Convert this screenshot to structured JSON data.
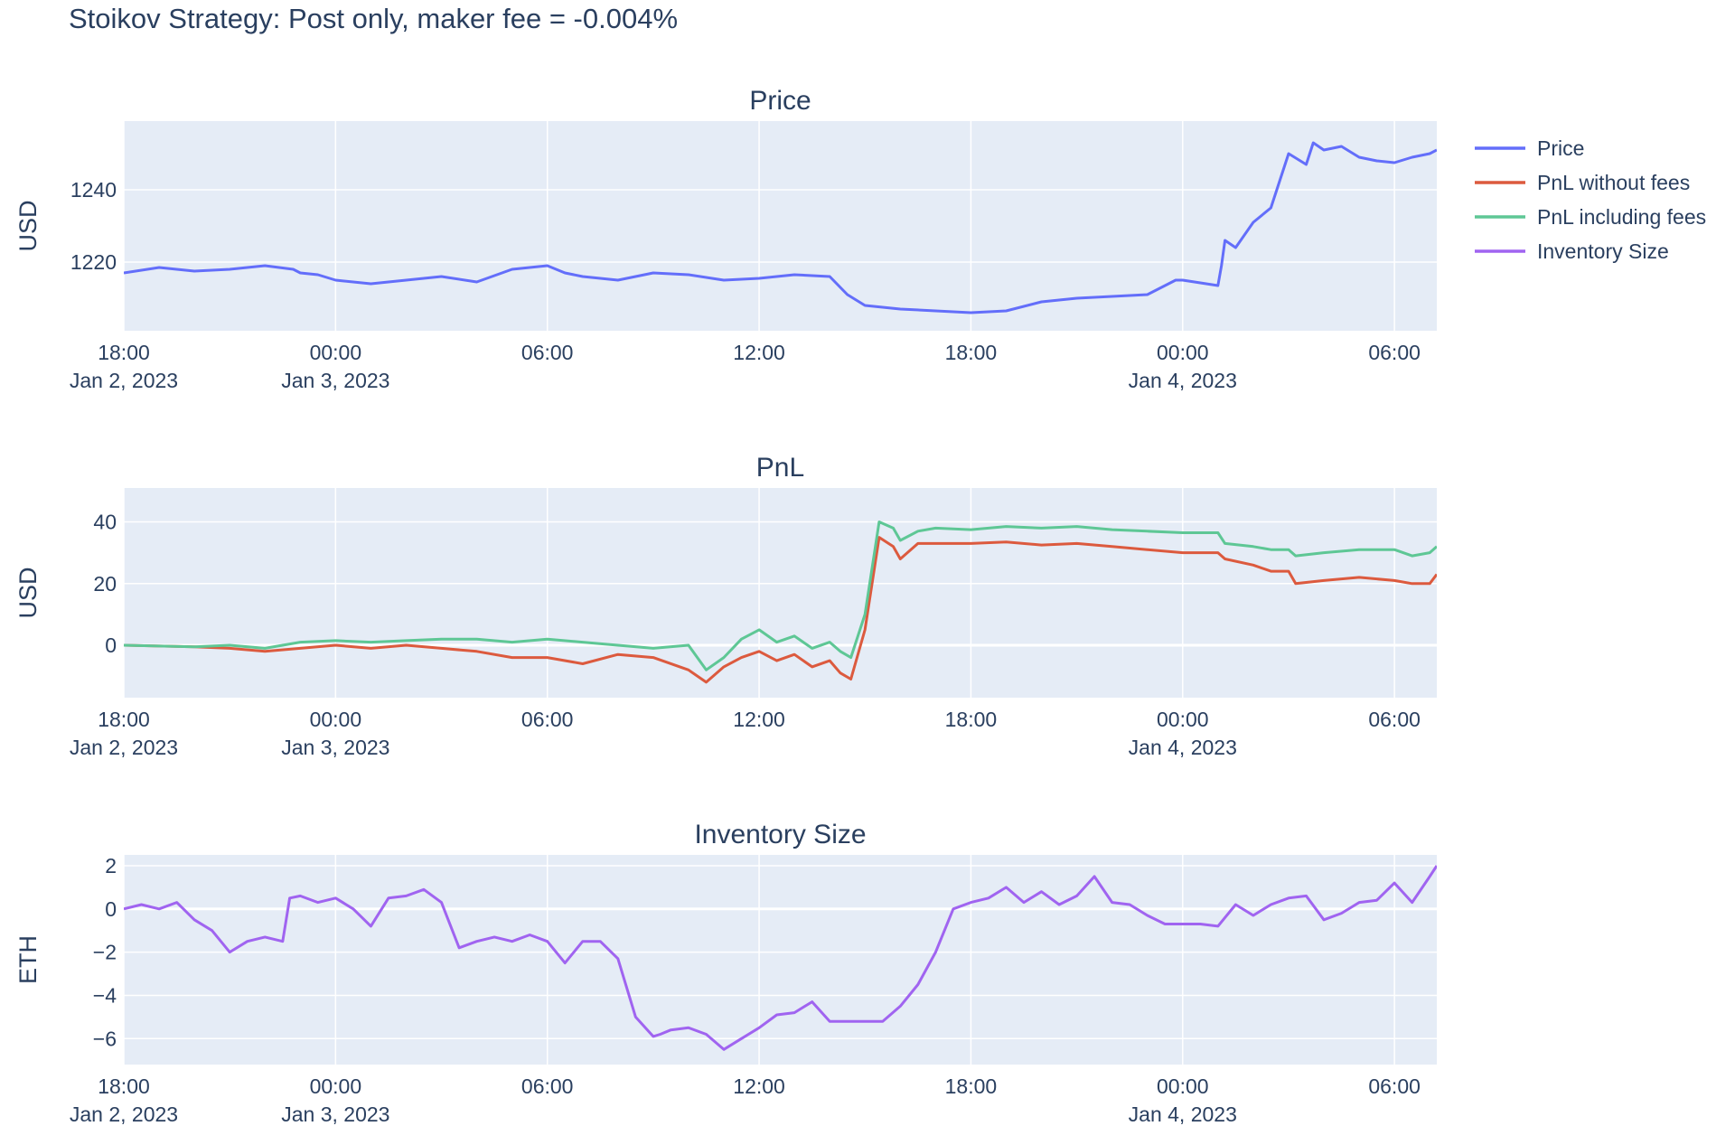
{
  "title": "Stoikov Strategy: Post only, maker fee = -0.004%",
  "colors": {
    "price": "#636efa",
    "pnl_no_fees": "#dc5a3e",
    "pnl_fees": "#5ec795",
    "inventory": "#a064f0",
    "plot_bg": "#e5ecf6",
    "grid": "#ffffff",
    "text": "#2a3f5f"
  },
  "legend": {
    "placement": "right",
    "items": [
      {
        "label": "Price",
        "color": "#636efa"
      },
      {
        "label": "PnL without fees",
        "color": "#dc5a3e"
      },
      {
        "label": "PnL including fees",
        "color": "#5ec795"
      },
      {
        "label": "Inventory Size",
        "color": "#a064f0"
      }
    ]
  },
  "x_axis": {
    "type": "time",
    "range_hours": [
      0,
      37.2
    ],
    "ticks": [
      {
        "t": 0,
        "line1": "18:00",
        "line2": "Jan 2, 2023"
      },
      {
        "t": 6,
        "line1": "00:00",
        "line2": "Jan 3, 2023"
      },
      {
        "t": 12,
        "line1": "06:00",
        "line2": ""
      },
      {
        "t": 18,
        "line1": "12:00",
        "line2": ""
      },
      {
        "t": 24,
        "line1": "18:00",
        "line2": ""
      },
      {
        "t": 30,
        "line1": "00:00",
        "line2": "Jan 4, 2023"
      },
      {
        "t": 36,
        "line1": "06:00",
        "line2": ""
      }
    ]
  },
  "chart_data": [
    {
      "type": "line",
      "title": "Price",
      "ylabel": "USD",
      "ylim": [
        1201,
        1259
      ],
      "yticks": [
        1220,
        1240
      ],
      "grid": true,
      "series": [
        {
          "name": "Price",
          "color_key": "price",
          "t": [
            0,
            1,
            2,
            3,
            4,
            4.8,
            5,
            5.5,
            6,
            7,
            8,
            9,
            10,
            11,
            12,
            12.5,
            13,
            14,
            15,
            16,
            17,
            18,
            19,
            20,
            20.5,
            21,
            22,
            23,
            24,
            25,
            26,
            27,
            28,
            29,
            29.8,
            30,
            31,
            31.1,
            31.2,
            31.5,
            32,
            32.5,
            33,
            33.5,
            33.7,
            34,
            34.5,
            35,
            35.5,
            36,
            36.5,
            37,
            37.2
          ],
          "y": [
            1217,
            1218.5,
            1217.5,
            1218,
            1219,
            1218,
            1217,
            1216.5,
            1215,
            1214,
            1215,
            1216,
            1214.5,
            1218,
            1219,
            1217,
            1216,
            1215,
            1217,
            1216.5,
            1215,
            1215.5,
            1216.5,
            1216,
            1211,
            1208,
            1207,
            1206.5,
            1206,
            1206.5,
            1209,
            1210,
            1210.5,
            1211,
            1215,
            1215,
            1213.5,
            1219,
            1226,
            1224,
            1231,
            1235,
            1250,
            1247,
            1253,
            1251,
            1252,
            1249,
            1248,
            1247.5,
            1249,
            1250,
            1251
          ]
        }
      ]
    },
    {
      "type": "line",
      "title": "PnL",
      "ylabel": "USD",
      "ylim": [
        -17,
        51
      ],
      "yticks": [
        0,
        20,
        40
      ],
      "grid": true,
      "series": [
        {
          "name": "PnL without fees",
          "color_key": "pnl_no_fees",
          "t": [
            0,
            2,
            3,
            4,
            5,
            6,
            7,
            8,
            9,
            10,
            11,
            12,
            13,
            14,
            15,
            16,
            16.5,
            17,
            17.5,
            18,
            18.5,
            19,
            19.5,
            20,
            20.3,
            20.6,
            21,
            21.4,
            21.8,
            22,
            22.5,
            23,
            24,
            25,
            26,
            27,
            28,
            29,
            30,
            31,
            31.2,
            32,
            32.5,
            33,
            33.2,
            34,
            35,
            36,
            36.5,
            37,
            37.2
          ],
          "y": [
            0,
            -0.5,
            -1,
            -2,
            -1,
            0,
            -1,
            0,
            -1,
            -2,
            -4,
            -4,
            -6,
            -3,
            -4,
            -8,
            -12,
            -7,
            -4,
            -2,
            -5,
            -3,
            -7,
            -5,
            -9,
            -11,
            5,
            35,
            32,
            28,
            33,
            33,
            33,
            33.5,
            32.5,
            33,
            32,
            31,
            30,
            30,
            28,
            26,
            24,
            24,
            20,
            21,
            22,
            21,
            20,
            20,
            23
          ]
        },
        {
          "name": "PnL including fees",
          "color_key": "pnl_fees",
          "t": [
            0,
            2,
            3,
            4,
            5,
            6,
            7,
            8,
            9,
            10,
            11,
            12,
            13,
            14,
            15,
            16,
            16.5,
            17,
            17.5,
            18,
            18.5,
            19,
            19.5,
            20,
            20.3,
            20.6,
            21,
            21.4,
            21.8,
            22,
            22.5,
            23,
            24,
            25,
            26,
            27,
            28,
            29,
            30,
            31,
            31.2,
            32,
            32.5,
            33,
            33.2,
            34,
            35,
            36,
            36.5,
            37,
            37.2
          ],
          "y": [
            0,
            -0.5,
            0,
            -1,
            1,
            1.5,
            1,
            1.5,
            2,
            2,
            1,
            2,
            1,
            0,
            -1,
            0,
            -8,
            -4,
            2,
            5,
            1,
            3,
            -1,
            1,
            -2,
            -4,
            10,
            40,
            38,
            34,
            37,
            38,
            37.5,
            38.5,
            38,
            38.5,
            37.5,
            37,
            36.5,
            36.5,
            33,
            32,
            31,
            31,
            29,
            30,
            31,
            31,
            29,
            30,
            32
          ]
        }
      ]
    },
    {
      "type": "line",
      "title": "Inventory Size",
      "ylabel": "ETH",
      "ylim": [
        -7.2,
        2.5
      ],
      "yticks": [
        -6,
        -4,
        -2,
        0,
        2
      ],
      "grid": true,
      "series": [
        {
          "name": "Inventory Size",
          "color_key": "inventory",
          "t": [
            0,
            0.5,
            1,
            1.5,
            2,
            2.5,
            3,
            3.5,
            4,
            4.5,
            4.7,
            5,
            5.5,
            6,
            6.5,
            7,
            7.5,
            8,
            8.5,
            9,
            9.5,
            10,
            10.5,
            11,
            11.5,
            12,
            12.5,
            13,
            13.5,
            14,
            14.5,
            15,
            15.2,
            15.5,
            16,
            16.5,
            17,
            17.5,
            18,
            18.5,
            19,
            19.5,
            20,
            20.5,
            21,
            21.5,
            22,
            22.5,
            23,
            23.5,
            24,
            24.5,
            25,
            25.5,
            26,
            26.5,
            27,
            27.5,
            28,
            28.5,
            29,
            29.5,
            30,
            30.5,
            31,
            31.5,
            32,
            32.5,
            33,
            33.5,
            34,
            34.5,
            35,
            35.5,
            36,
            36.5,
            37,
            37.2
          ],
          "y": [
            0,
            0.2,
            0,
            0.3,
            -0.5,
            -1,
            -2,
            -1.5,
            -1.3,
            -1.5,
            0.5,
            0.6,
            0.3,
            0.5,
            0,
            -0.8,
            0.5,
            0.6,
            0.9,
            0.3,
            -1.8,
            -1.5,
            -1.3,
            -1.5,
            -1.2,
            -1.5,
            -2.5,
            -1.5,
            -1.5,
            -2.3,
            -5,
            -5.9,
            -5.8,
            -5.6,
            -5.5,
            -5.8,
            -6.5,
            -6,
            -5.5,
            -4.9,
            -4.8,
            -4.3,
            -5.2,
            -5.2,
            -5.2,
            -5.2,
            -4.5,
            -3.5,
            -2,
            0,
            0.3,
            0.5,
            1,
            0.3,
            0.8,
            0.2,
            0.6,
            1.5,
            0.3,
            0.2,
            -0.3,
            -0.7,
            -0.7,
            -0.7,
            -0.8,
            0.2,
            -0.3,
            0.2,
            0.5,
            0.6,
            -0.5,
            -0.2,
            0.3,
            0.4,
            1.2,
            0.3,
            1.5,
            2
          ]
        }
      ]
    }
  ]
}
